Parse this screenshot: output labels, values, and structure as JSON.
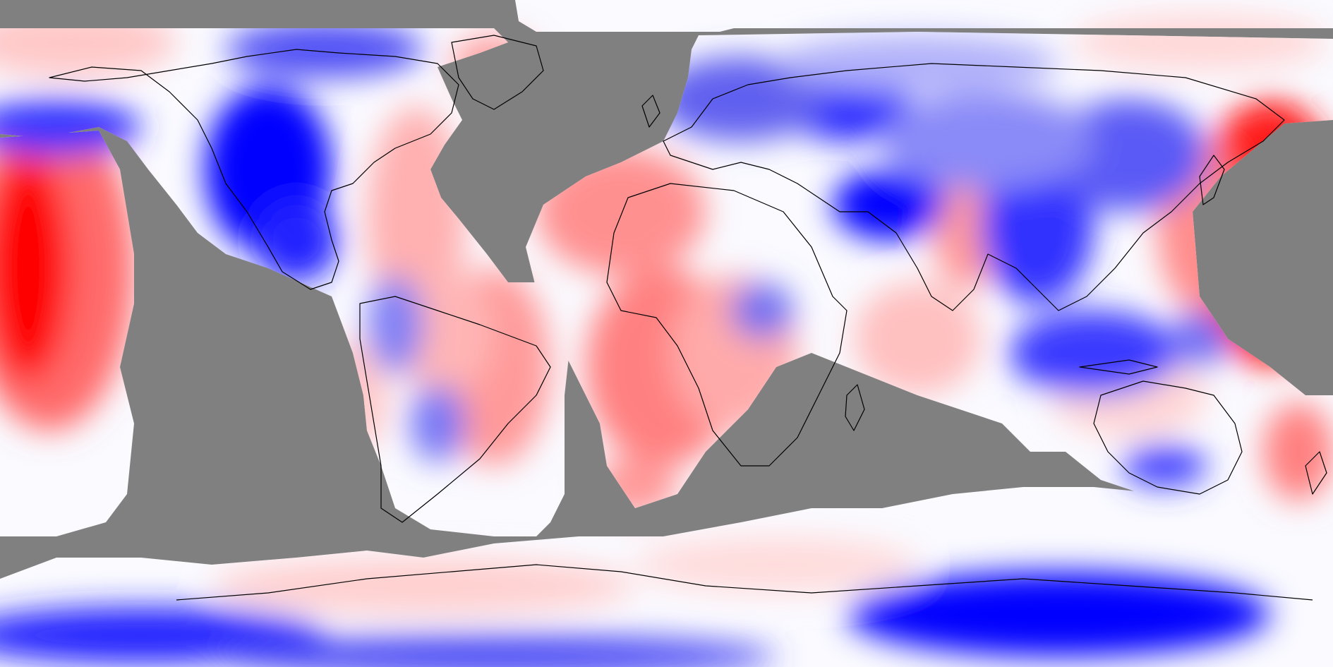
{
  "map": {
    "projection": "equirectangular",
    "background_no_data_color": "#808080",
    "palette": {
      "strong_cold": "#0000ff",
      "cold": "#6f6ff4",
      "cool": "#c8c8fb",
      "neutral": "#fafaff",
      "warm": "#ffc8c8",
      "hot": "#ff6a6a",
      "strong_hot": "#ff0000",
      "coastline": "#000000"
    },
    "has_legend": false,
    "has_title": false
  }
}
